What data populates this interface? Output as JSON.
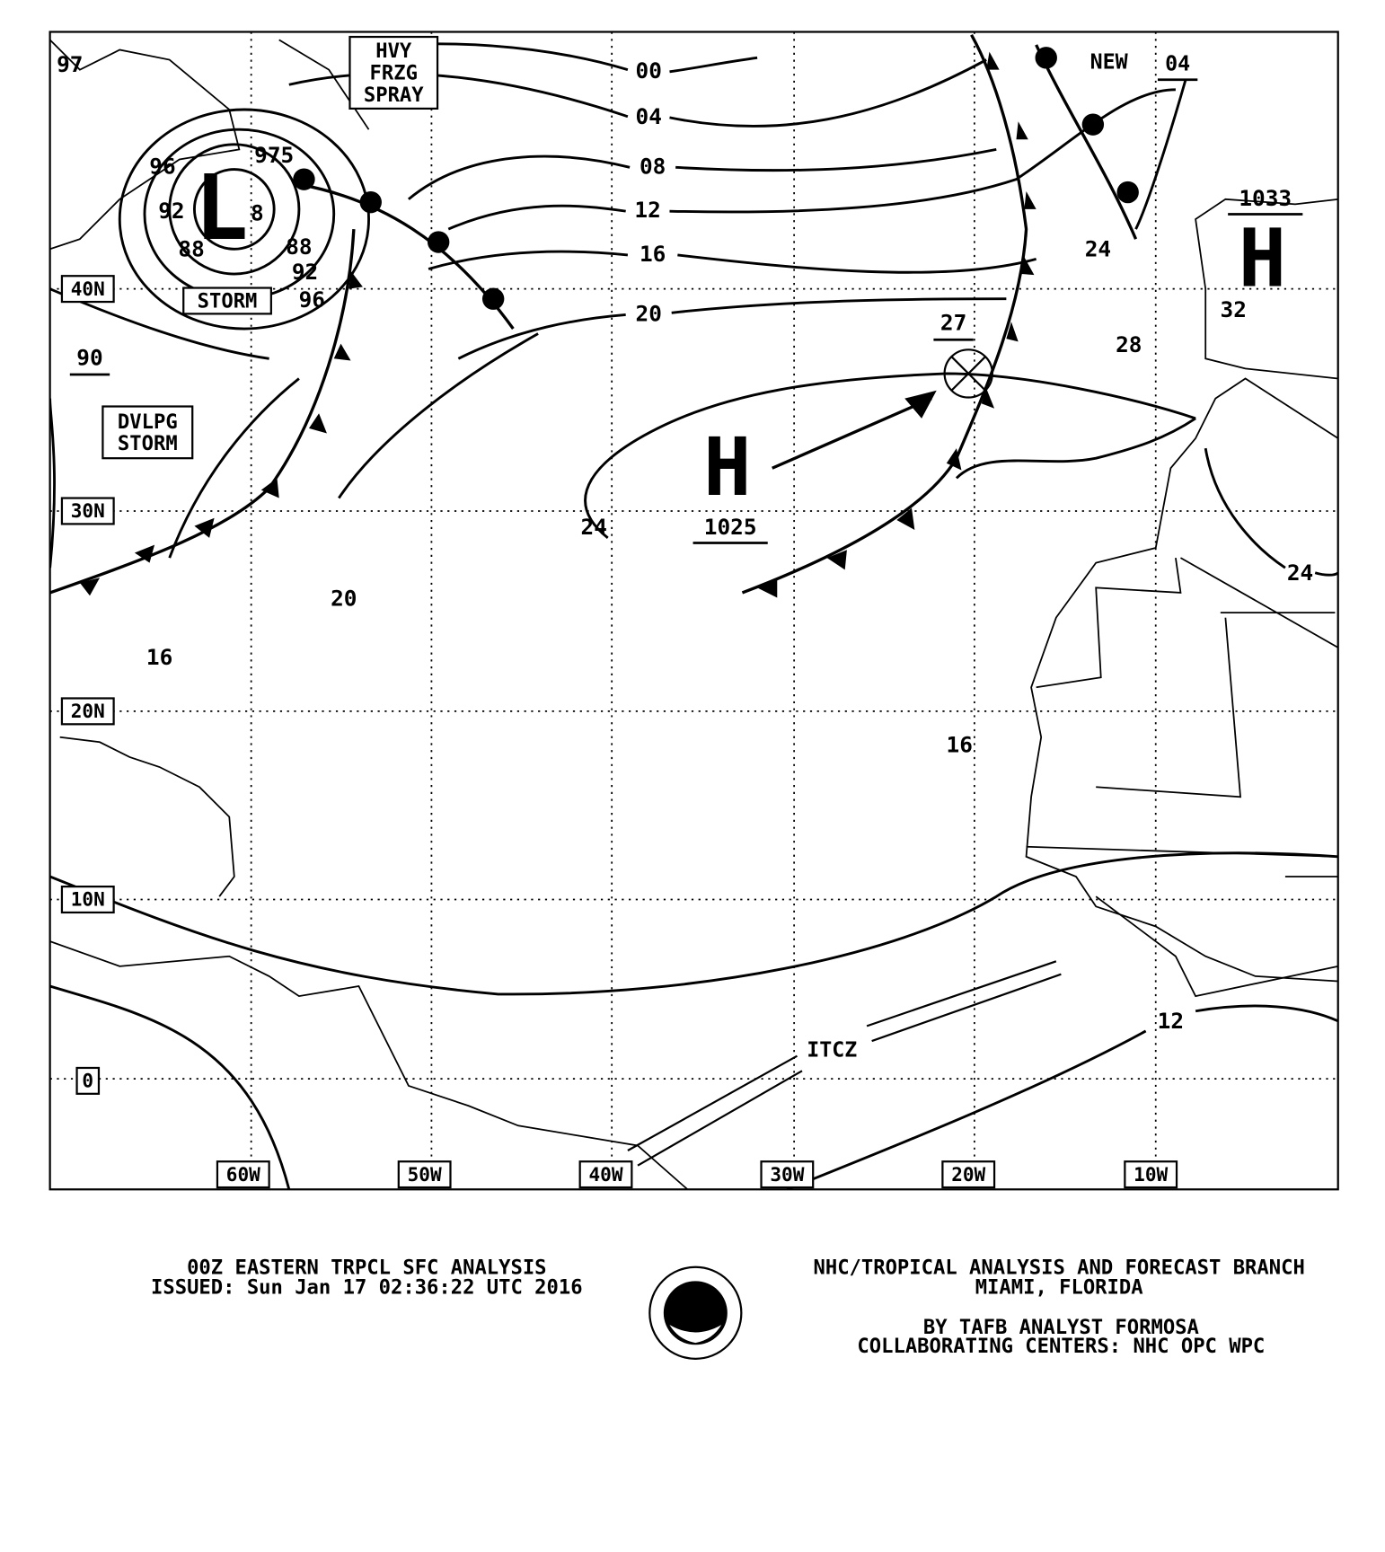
{
  "map": {
    "lat_labels": [
      "40N",
      "30N",
      "20N",
      "10N",
      "0"
    ],
    "lon_labels": [
      "60W",
      "50W",
      "40W",
      "30W",
      "20W",
      "10W"
    ],
    "isobar_labels": [
      "00",
      "04",
      "08",
      "12",
      "16",
      "20",
      "24",
      "20",
      "16",
      "16",
      "24",
      "28",
      "24",
      "12",
      "27",
      "90",
      "97",
      "96",
      "92",
      "88",
      "88",
      "92",
      "96",
      "8",
      "32"
    ],
    "centers": [
      {
        "symbol": "L",
        "pressure": "975"
      },
      {
        "symbol": "H",
        "pressure": "1025"
      },
      {
        "symbol": "H",
        "pressure": "1033"
      }
    ],
    "warning_boxes": [
      [
        "HVY",
        "FRZG",
        "SPRAY"
      ],
      [
        "STORM"
      ],
      [
        "DVLPG",
        "STORM"
      ]
    ],
    "annotations": [
      "NEW",
      "04",
      "ITCZ"
    ]
  },
  "footer": {
    "left": [
      "00Z EASTERN TRPCL SFC ANALYSIS",
      "ISSUED: Sun Jan 17 02:36:22 UTC 2016"
    ],
    "logo": "NOAA",
    "right": [
      "NHC/TROPICAL ANALYSIS AND FORECAST BRANCH",
      "MIAMI,  FLORIDA",
      "BY TAFB ANALYST  FORMOSA",
      "COLLABORATING CENTERS: NHC OPC WPC"
    ]
  }
}
